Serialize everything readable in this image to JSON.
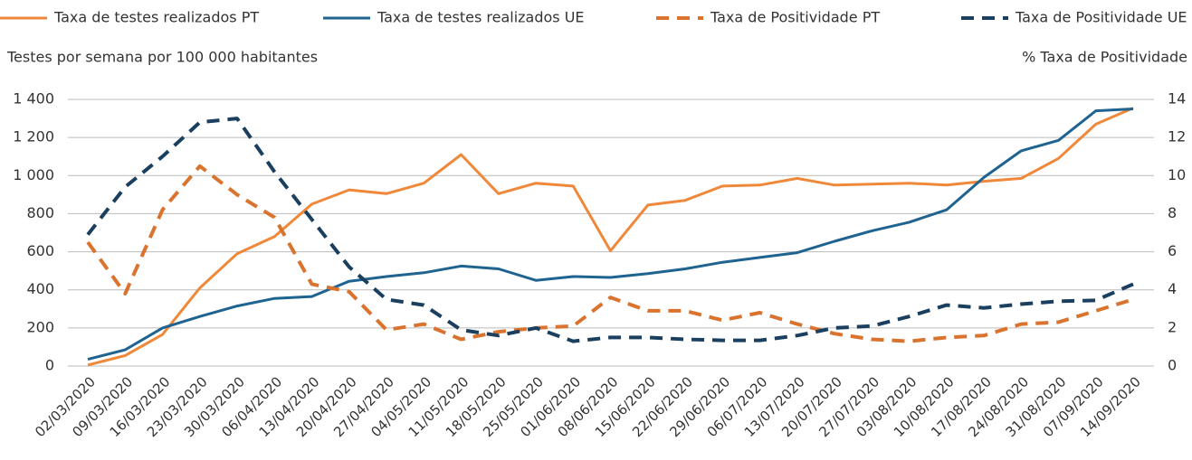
{
  "chart_data": {
    "type": "line",
    "y_label": "Testes por semana por 100 000 habitantes",
    "y2_label": "% Taxa de Positividade",
    "categories": [
      "02/03/2020",
      "09/03/2020",
      "16/03/2020",
      "23/03/2020",
      "30/03/2020",
      "06/04/2020",
      "13/04/2020",
      "20/04/2020",
      "27/04/2020",
      "04/05/2020",
      "11/05/2020",
      "18/05/2020",
      "25/05/2020",
      "01/06/2020",
      "08/06/2020",
      "15/06/2020",
      "22/06/2020",
      "29/06/2020",
      "06/07/2020",
      "13/07/2020",
      "20/07/2020",
      "27/07/2020",
      "03/08/2020",
      "10/08/2020",
      "17/08/2020",
      "24/08/2020",
      "31/08/2020",
      "07/09/2020",
      "14/09/2020"
    ],
    "series": [
      {
        "name": "Taxa de testes realizados PT",
        "color": "#f0883a",
        "dashed": false,
        "values": [
          5,
          55,
          165,
          410,
          590,
          680,
          850,
          925,
          905,
          960,
          1110,
          905,
          960,
          945,
          605,
          845,
          870,
          945,
          950,
          985,
          950,
          955,
          960,
          950,
          970,
          985,
          1090,
          1270,
          1355
        ]
      },
      {
        "name": "Taxa de testes realizados UE",
        "color": "#1f6391",
        "dashed": false,
        "values": [
          35,
          85,
          200,
          260,
          315,
          355,
          365,
          445,
          470,
          490,
          525,
          510,
          450,
          470,
          465,
          485,
          510,
          545,
          570,
          595,
          655,
          710,
          755,
          820,
          990,
          1130,
          1185,
          1340,
          1350
        ]
      },
      {
        "name": "Taxa de Positividade PT",
        "color": "#d9732e",
        "dashed": true,
        "axis": "y2",
        "values": [
          6.5,
          3.8,
          8.2,
          10.5,
          9.0,
          7.8,
          4.3,
          3.9,
          1.9,
          2.2,
          1.4,
          1.8,
          2.0,
          2.1,
          3.6,
          2.9,
          2.9,
          2.4,
          2.8,
          2.2,
          1.7,
          1.4,
          1.3,
          1.5,
          1.6,
          2.2,
          2.3,
          2.9,
          3.5
        ]
      },
      {
        "name": "Taxa de Positividade UE",
        "color": "#1b3f5e",
        "dashed": true,
        "axis": "y2",
        "values": [
          6.9,
          9.4,
          11.0,
          12.8,
          13.0,
          10.2,
          7.7,
          5.2,
          3.5,
          3.2,
          1.9,
          1.6,
          2.0,
          1.3,
          1.5,
          1.5,
          1.4,
          1.35,
          1.35,
          1.6,
          2.0,
          2.1,
          2.6,
          3.2,
          3.05,
          3.25,
          3.4,
          3.45,
          4.3
        ]
      }
    ],
    "ylim": [
      0,
      1400
    ],
    "yticks": [
      0,
      200,
      400,
      600,
      800,
      {
        "value": 1000,
        "label": "1 000"
      },
      {
        "value": 1200,
        "label": "1 200"
      },
      {
        "value": 1400,
        "label": "1 400"
      }
    ],
    "y2lim": [
      0,
      14
    ],
    "y2ticks": [
      0,
      2,
      4,
      6,
      8,
      10,
      12,
      14
    ],
    "grid": true,
    "legend": "top"
  }
}
